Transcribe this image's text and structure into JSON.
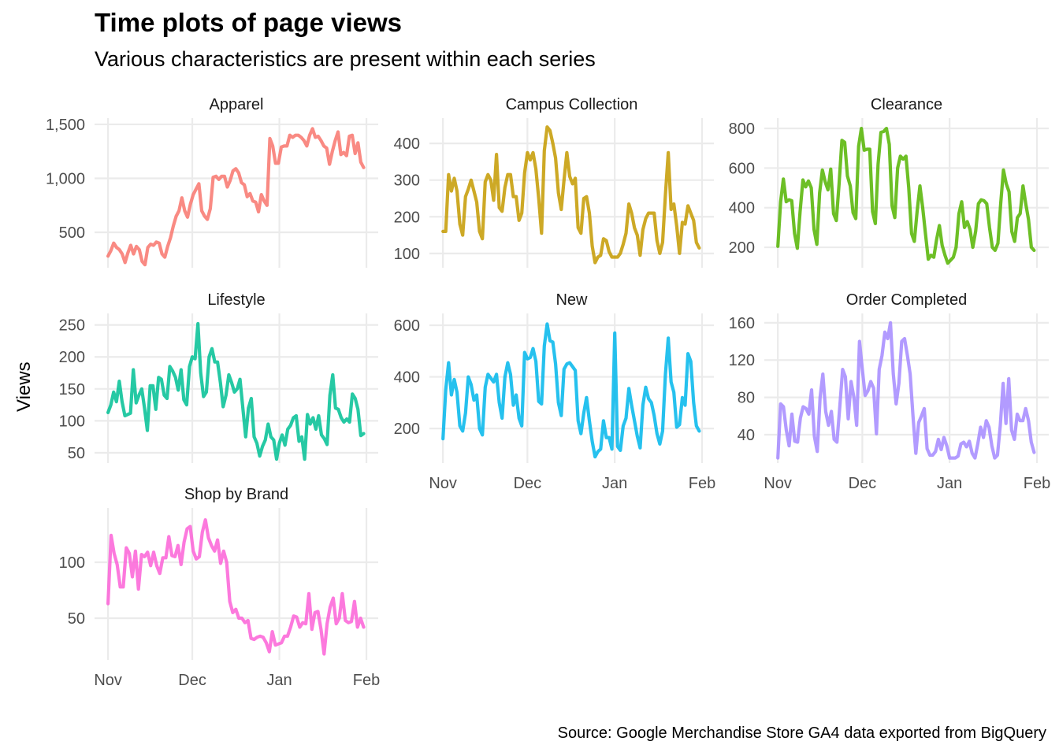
{
  "chart_data": {
    "type": "line",
    "title": "Time plots of page views",
    "subtitle": "Various characteristics are present within each series",
    "ylabel": "Views",
    "xlabel": "",
    "caption": "Source: Google Merchandise Store GA4 data exported from BigQuery",
    "x_range": [
      "Nov 1",
      "Jan 31"
    ],
    "x_ticks": [
      {
        "label": "Nov",
        "day": 0
      },
      {
        "label": "Dec",
        "day": 30
      },
      {
        "label": "Jan",
        "day": 61
      },
      {
        "label": "Feb",
        "day": 92
      }
    ],
    "xlim_days": [
      -4.8,
      96.2
    ],
    "grid": true,
    "legend": "none",
    "panels": [
      {
        "name": "Apparel",
        "color": "#F8766D",
        "ylim": [
          172,
          1558
        ],
        "yticks": [
          {
            "v": 500,
            "label": "500"
          },
          {
            "v": 1000,
            "label": "1,000"
          },
          {
            "v": 1500,
            "label": "1,500"
          }
        ],
        "values": [
          280,
          330,
          400,
          360,
          340,
          300,
          220,
          310,
          380,
          300,
          370,
          340,
          230,
          200,
          360,
          390,
          380,
          410,
          400,
          300,
          270,
          370,
          450,
          560,
          650,
          700,
          820,
          700,
          640,
          760,
          850,
          900,
          950,
          700,
          650,
          620,
          720,
          1010,
          1020,
          990,
          1020,
          1020,
          920,
          980,
          1070,
          1090,
          1050,
          960,
          940,
          830,
          860,
          790,
          780,
          690,
          850,
          790,
          750,
          1370,
          1300,
          1140,
          1140,
          1290,
          1300,
          1300,
          1400,
          1380,
          1400,
          1400,
          1380,
          1350,
          1300,
          1400,
          1460,
          1380,
          1390,
          1350,
          1300,
          1280,
          1130,
          1250,
          1350,
          1430,
          1220,
          1240,
          1210,
          1390,
          1400,
          1230,
          1330,
          1150,
          1100
        ]
      },
      {
        "name": "Campus Collection",
        "color": "#C49A00",
        "ylim": [
          61,
          469
        ],
        "yticks": [
          {
            "v": 100,
            "label": "100"
          },
          {
            "v": 200,
            "label": "200"
          },
          {
            "v": 300,
            "label": "300"
          },
          {
            "v": 400,
            "label": "400"
          }
        ],
        "values": [
          160,
          160,
          315,
          270,
          305,
          270,
          180,
          150,
          255,
          275,
          300,
          270,
          240,
          160,
          140,
          295,
          315,
          300,
          245,
          370,
          225,
          215,
          280,
          315,
          315,
          255,
          255,
          190,
          210,
          320,
          375,
          355,
          375,
          330,
          250,
          155,
          380,
          445,
          435,
          400,
          360,
          265,
          220,
          300,
          375,
          310,
          290,
          305,
          170,
          155,
          250,
          255,
          210,
          120,
          75,
          90,
          95,
          140,
          135,
          105,
          90,
          90,
          90,
          100,
          125,
          155,
          235,
          210,
          170,
          150,
          95,
          165,
          195,
          210,
          210,
          210,
          135,
          100,
          130,
          260,
          375,
          220,
          235,
          175,
          100,
          185,
          180,
          230,
          210,
          190,
          130,
          115
        ]
      },
      {
        "name": "Clearance",
        "color": "#53B400",
        "ylim": [
          97,
          852
        ],
        "yticks": [
          {
            "v": 200,
            "label": "200"
          },
          {
            "v": 400,
            "label": "400"
          },
          {
            "v": 600,
            "label": "600"
          },
          {
            "v": 800,
            "label": "800"
          }
        ],
        "values": [
          205,
          430,
          545,
          430,
          440,
          435,
          270,
          195,
          380,
          540,
          505,
          535,
          500,
          290,
          215,
          475,
          590,
          530,
          490,
          595,
          370,
          335,
          520,
          740,
          730,
          560,
          510,
          375,
          345,
          710,
          800,
          690,
          695,
          695,
          380,
          320,
          620,
          780,
          785,
          800,
          720,
          410,
          350,
          600,
          660,
          645,
          660,
          500,
          270,
          230,
          380,
          510,
          400,
          270,
          140,
          160,
          150,
          240,
          310,
          210,
          160,
          120,
          135,
          150,
          200,
          370,
          430,
          300,
          330,
          290,
          200,
          280,
          420,
          440,
          435,
          420,
          300,
          200,
          185,
          220,
          420,
          590,
          520,
          480,
          280,
          230,
          350,
          370,
          510,
          420,
          340,
          200,
          185
        ]
      },
      {
        "name": "Lifestyle",
        "color": "#00C094",
        "ylim": [
          34,
          268
        ],
        "yticks": [
          {
            "v": 50,
            "label": "50"
          },
          {
            "v": 100,
            "label": "100"
          },
          {
            "v": 150,
            "label": "150"
          },
          {
            "v": 200,
            "label": "200"
          },
          {
            "v": 250,
            "label": "250"
          }
        ],
        "values": [
          113,
          125,
          145,
          130,
          162,
          130,
          108,
          110,
          112,
          180,
          128,
          140,
          150,
          120,
          85,
          155,
          155,
          118,
          168,
          165,
          140,
          135,
          185,
          178,
          168,
          148,
          180,
          133,
          125,
          185,
          200,
          197,
          252,
          175,
          138,
          145,
          200,
          213,
          192,
          192,
          160,
          122,
          140,
          172,
          160,
          145,
          150,
          165,
          120,
          75,
          120,
          135,
          75,
          65,
          45,
          60,
          70,
          95,
          75,
          70,
          40,
          65,
          78,
          62,
          87,
          93,
          105,
          108,
          68,
          75,
          40,
          110,
          95,
          105,
          87,
          108,
          78,
          72,
          63,
          140,
          172,
          120,
          118,
          105,
          98,
          103,
          98,
          142,
          135,
          118,
          77,
          80
        ]
      },
      {
        "name": "New",
        "color": "#00B6EB",
        "ylim": [
          66,
          646
        ],
        "yticks": [
          {
            "v": 200,
            "label": "200"
          },
          {
            "v": 400,
            "label": "400"
          },
          {
            "v": 600,
            "label": "600"
          }
        ],
        "values": [
          160,
          350,
          455,
          330,
          390,
          340,
          210,
          190,
          260,
          400,
          370,
          310,
          330,
          200,
          175,
          360,
          410,
          395,
          380,
          410,
          300,
          240,
          400,
          455,
          410,
          290,
          330,
          240,
          210,
          495,
          470,
          475,
          510,
          460,
          305,
          295,
          520,
          605,
          540,
          535,
          450,
          300,
          250,
          430,
          450,
          455,
          440,
          425,
          230,
          180,
          260,
          320,
          230,
          150,
          90,
          110,
          120,
          230,
          165,
          165,
          120,
          570,
          130,
          115,
          210,
          240,
          355,
          290,
          230,
          170,
          125,
          290,
          360,
          315,
          300,
          250,
          180,
          140,
          190,
          410,
          550,
          380,
          340,
          205,
          215,
          320,
          290,
          490,
          460,
          300,
          210,
          190
        ]
      },
      {
        "name": "Order Completed",
        "color": "#A58AFF",
        "ylim": [
          9.6,
          170
        ],
        "yticks": [
          {
            "v": 40,
            "label": "40"
          },
          {
            "v": 80,
            "label": "80"
          },
          {
            "v": 120,
            "label": "120"
          },
          {
            "v": 160,
            "label": "160"
          }
        ],
        "values": [
          15,
          73,
          70,
          45,
          28,
          62,
          33,
          32,
          58,
          70,
          68,
          62,
          88,
          38,
          22,
          80,
          105,
          65,
          50,
          65,
          35,
          32,
          70,
          110,
          102,
          57,
          97,
          80,
          50,
          140,
          110,
          82,
          87,
          97,
          90,
          41,
          110,
          125,
          150,
          143,
          160,
          105,
          73,
          95,
          140,
          143,
          125,
          105,
          60,
          20,
          53,
          60,
          68,
          25,
          18,
          18,
          22,
          35,
          24,
          37,
          28,
          15,
          15,
          15,
          17,
          30,
          32,
          27,
          33,
          20,
          15,
          30,
          48,
          37,
          55,
          48,
          28,
          15,
          18,
          50,
          95,
          52,
          100,
          45,
          35,
          62,
          55,
          55,
          68,
          55,
          32,
          21
        ]
      },
      {
        "name": "Shop by Brand",
        "color": "#FB61D7",
        "ylim": [
          12.7,
          148.6
        ],
        "yticks": [
          {
            "v": 50,
            "label": "50"
          },
          {
            "v": 100,
            "label": "100"
          }
        ],
        "values": [
          63,
          124,
          108,
          98,
          78,
          78,
          113,
          108,
          87,
          110,
          76,
          107,
          105,
          109,
          97,
          109,
          97,
          90,
          104,
          104,
          123,
          106,
          105,
          115,
          98,
          118,
          130,
          132,
          110,
          103,
          105,
          127,
          138,
          122,
          115,
          110,
          120,
          99,
          110,
          100,
          65,
          55,
          58,
          50,
          50,
          46,
          48,
          32,
          31,
          33,
          34,
          33,
          28,
          20,
          38,
          26,
          27,
          28,
          34,
          34,
          42,
          52,
          51,
          42,
          46,
          45,
          72,
          40,
          55,
          56,
          40,
          18,
          45,
          60,
          68,
          45,
          50,
          72,
          48,
          46,
          47,
          65,
          42,
          50,
          42
        ]
      }
    ]
  }
}
